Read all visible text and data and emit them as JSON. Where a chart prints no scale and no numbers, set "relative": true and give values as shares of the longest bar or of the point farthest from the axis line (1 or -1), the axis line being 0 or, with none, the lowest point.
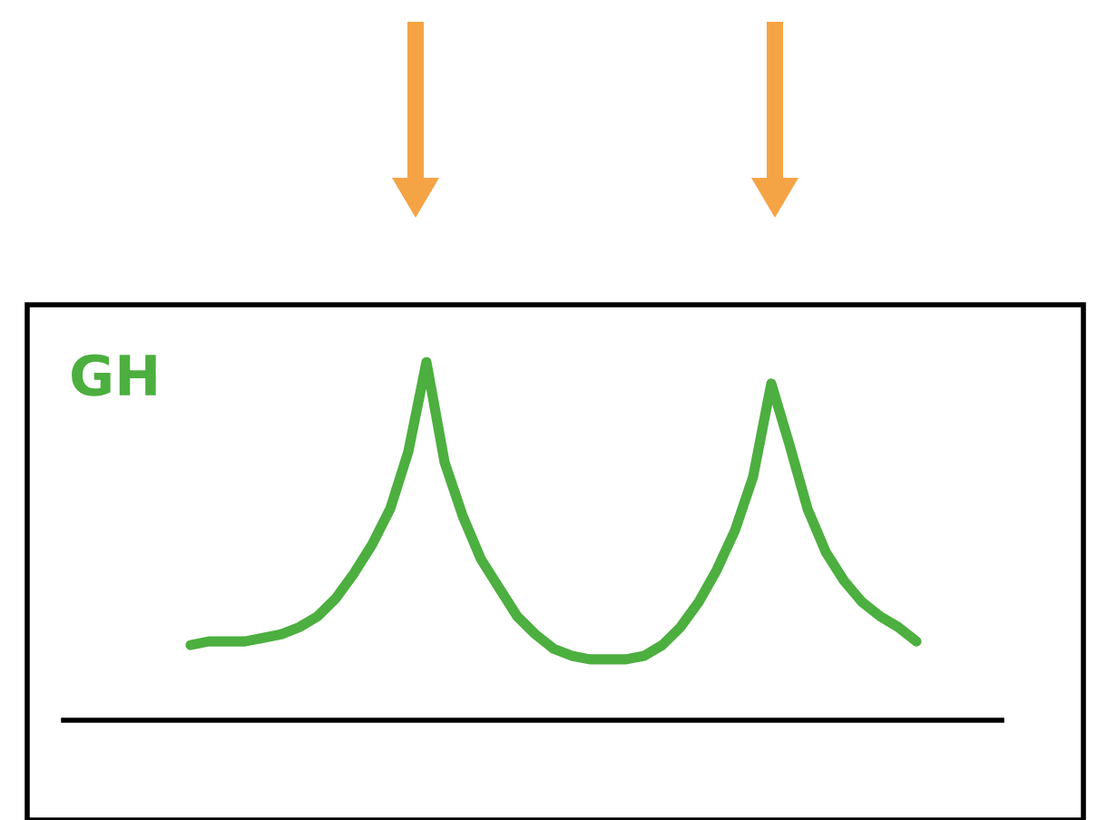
{
  "chart_data": {
    "type": "line",
    "relative": true,
    "categories": [
      null,
      null,
      null,
      null,
      null,
      null,
      null,
      null,
      null,
      null,
      null,
      null,
      null,
      null,
      null,
      null,
      null,
      null,
      null,
      null,
      null,
      null,
      null,
      null,
      null,
      null,
      null,
      null,
      null,
      null,
      null,
      null,
      null,
      null,
      null,
      null,
      null,
      null,
      null,
      null,
      null
    ],
    "series": [
      {
        "name": "GH",
        "color": "#4caf3f",
        "values": [
          0.21,
          0.22,
          0.22,
          0.22,
          0.23,
          0.24,
          0.26,
          0.29,
          0.34,
          0.41,
          0.49,
          0.59,
          0.75,
          1,
          0.72,
          0.57,
          0.45,
          0.37,
          0.29,
          0.24,
          0.2,
          0.18,
          0.17,
          0.17,
          0.17,
          0.18,
          0.21,
          0.26,
          0.33,
          0.42,
          0.53,
          0.68,
          0.94,
          0.77,
          0.59,
          0.47,
          0.39,
          0.33,
          0.29,
          0.26,
          0.22
        ]
      }
    ],
    "grid": false,
    "legend": false,
    "marker": "none",
    "line_style": "solid"
  }
}
